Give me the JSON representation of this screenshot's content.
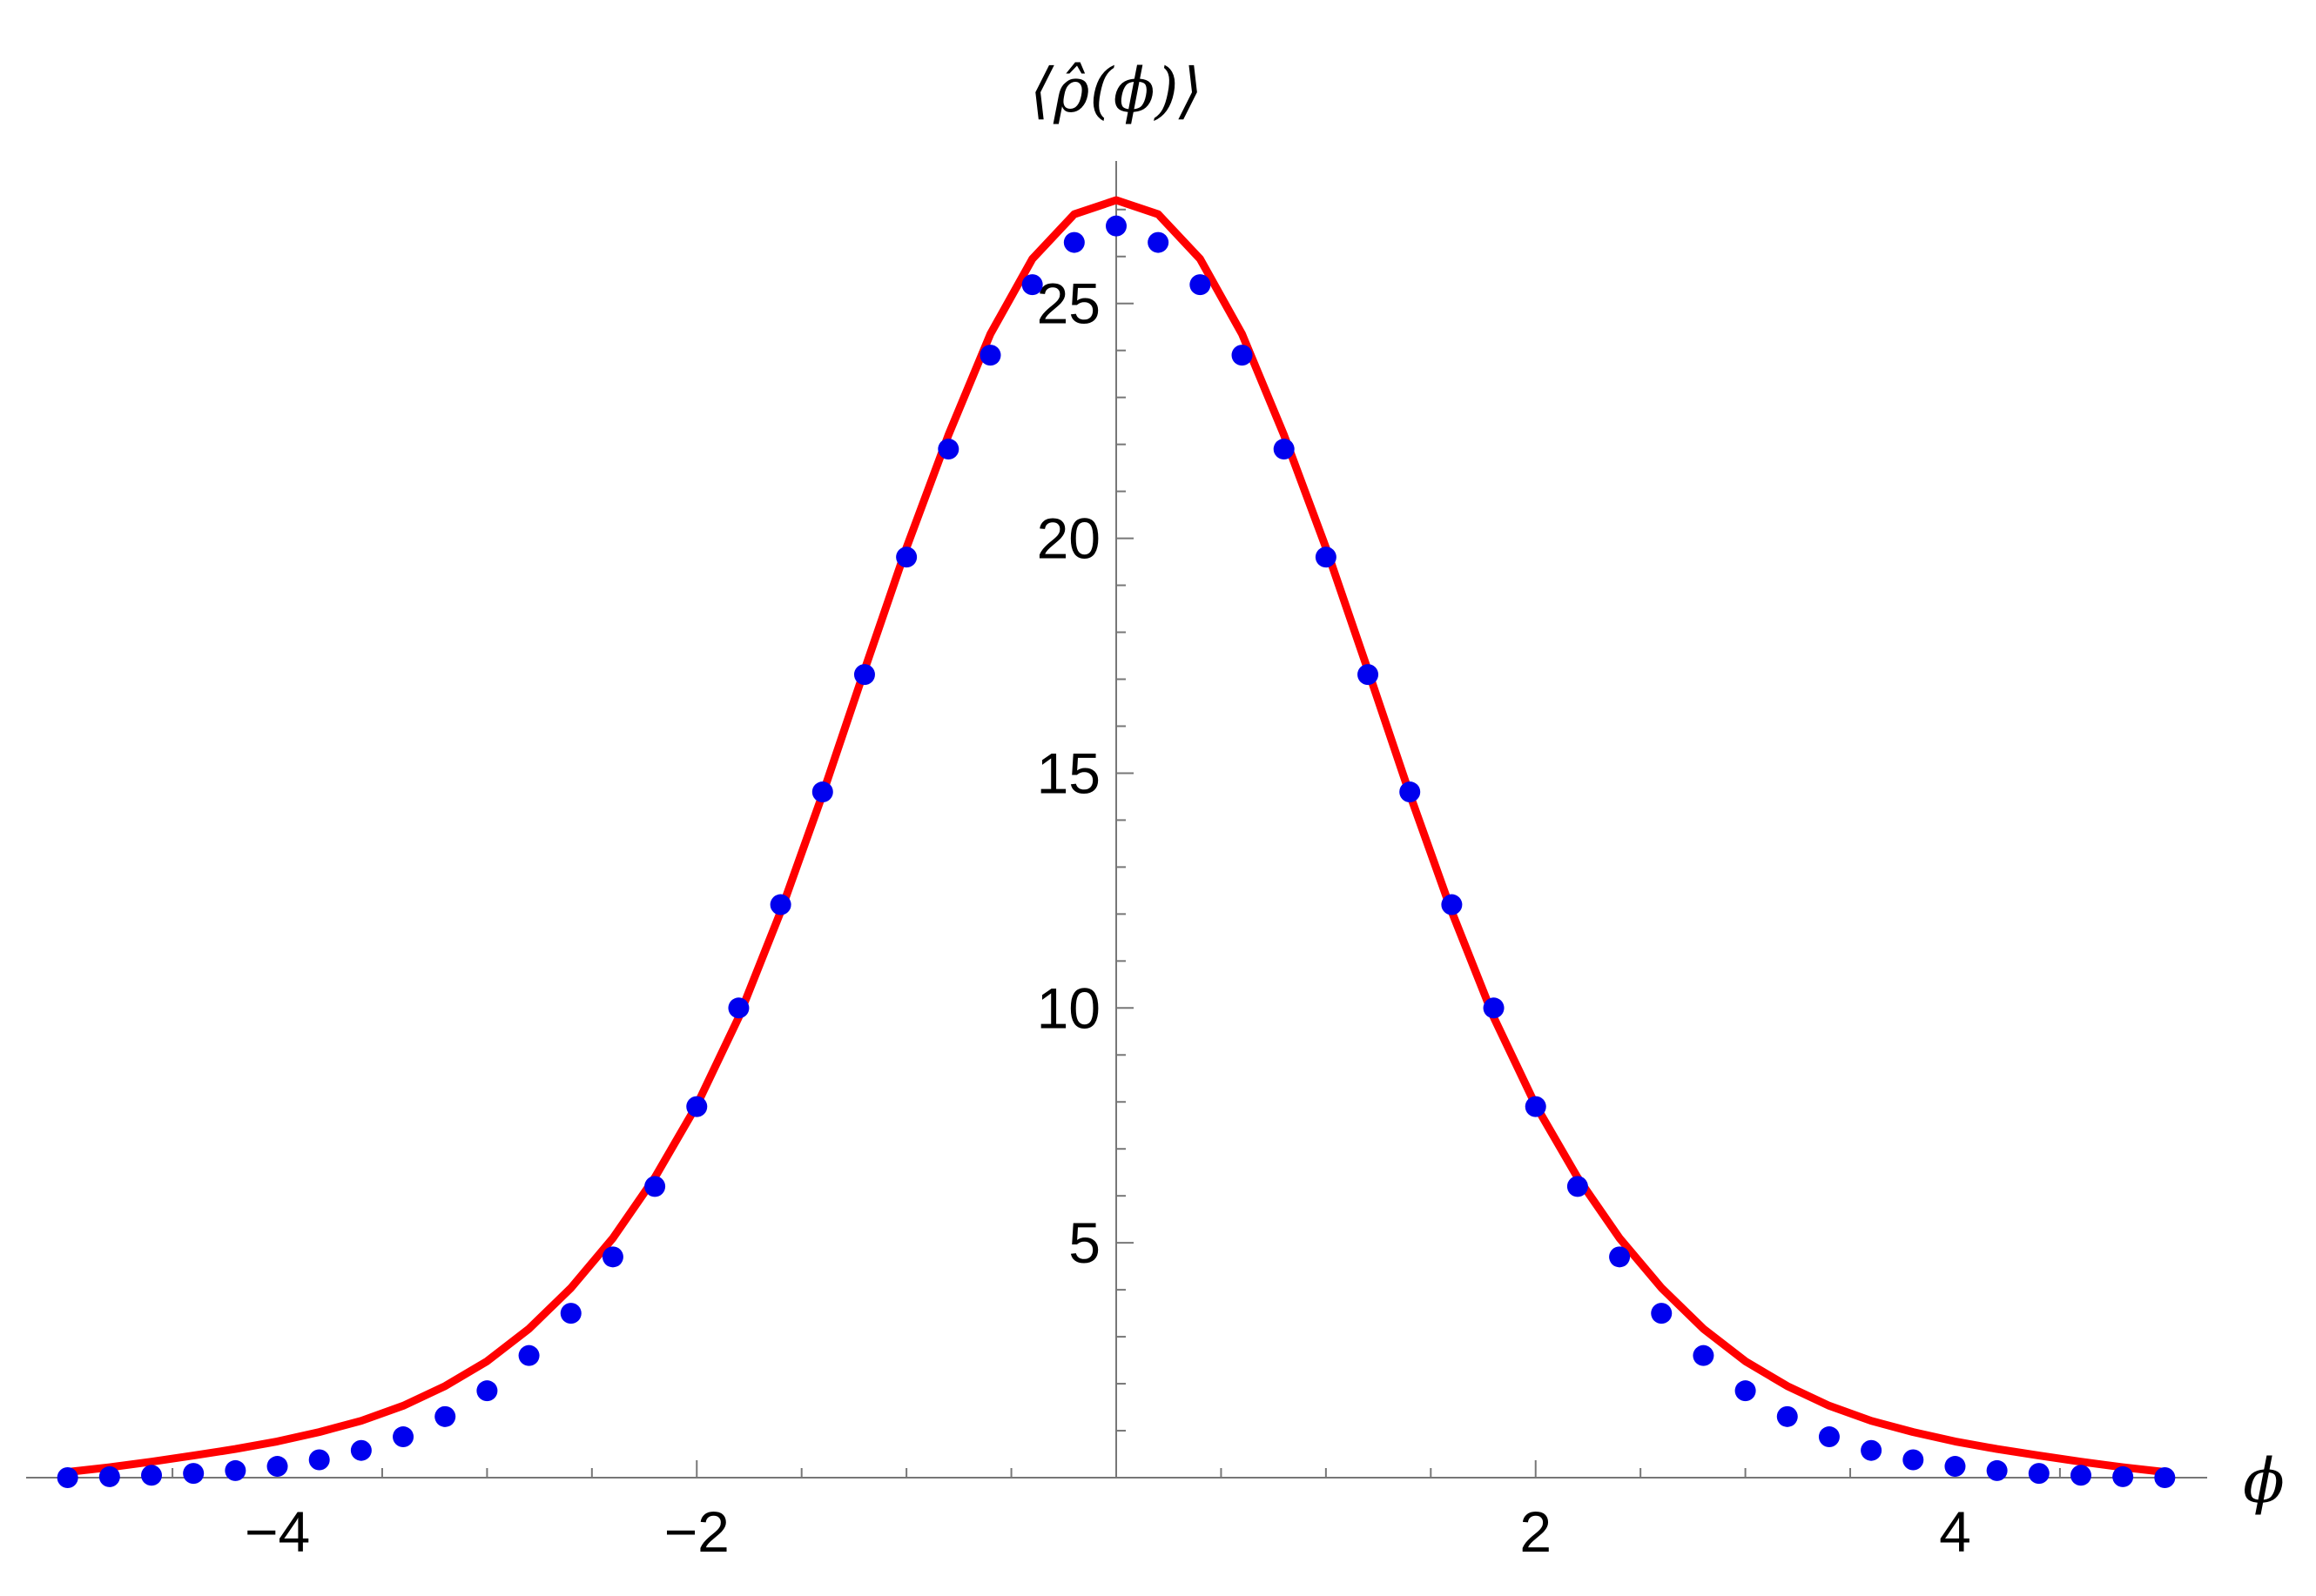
{
  "chart_data": {
    "type": "scatter",
    "title": "",
    "xlabel": "ϕ",
    "ylabel": "⟨ρ̂(ϕ)⟩",
    "xlim": [
      -5.2,
      5.2
    ],
    "ylim": [
      0,
      27.5
    ],
    "x_ticks": [
      -4,
      -2,
      2,
      4
    ],
    "x_tick_labels": [
      "−4",
      "−2",
      "2",
      "4"
    ],
    "y_ticks": [
      5,
      10,
      15,
      20,
      25
    ],
    "y_tick_labels": [
      "5",
      "10",
      "15",
      "20",
      "25"
    ],
    "grid": false,
    "legend": "none",
    "series": [
      {
        "kind": "points",
        "color": "#0000ee",
        "x": [
          -5.0,
          -4.8,
          -4.6,
          -4.4,
          -4.2,
          -4.0,
          -3.8,
          -3.6,
          -3.4,
          -3.2,
          -3.0,
          -2.8,
          -2.6,
          -2.4,
          -2.2,
          -2.0,
          -1.8,
          -1.6,
          -1.4,
          -1.2,
          -1.0,
          -0.8,
          -0.6,
          -0.4,
          -0.2,
          0.0,
          0.2,
          0.4,
          0.6,
          0.8,
          1.0,
          1.2,
          1.4,
          1.6,
          1.8,
          2.0,
          2.2,
          2.4,
          2.6,
          2.8,
          3.0,
          3.2,
          3.4,
          3.6,
          3.8,
          4.0,
          4.2,
          4.4,
          4.6,
          4.8,
          5.0
        ],
        "y": [
          0.0,
          0.02,
          0.05,
          0.09,
          0.15,
          0.24,
          0.38,
          0.58,
          0.87,
          1.3,
          1.85,
          2.6,
          3.5,
          4.7,
          6.2,
          7.9,
          10.0,
          12.2,
          14.6,
          17.1,
          19.6,
          21.9,
          23.9,
          25.4,
          26.3,
          26.65,
          26.3,
          25.4,
          23.9,
          21.9,
          19.6,
          17.1,
          14.6,
          12.2,
          10.0,
          7.9,
          6.2,
          4.7,
          3.5,
          2.6,
          1.85,
          1.3,
          0.87,
          0.58,
          0.38,
          0.24,
          0.15,
          0.09,
          0.05,
          0.02,
          0.0
        ]
      },
      {
        "kind": "line",
        "color": "#ff0000",
        "x": [
          -5.0,
          -4.8,
          -4.6,
          -4.4,
          -4.2,
          -4.0,
          -3.8,
          -3.6,
          -3.4,
          -3.2,
          -3.0,
          -2.8,
          -2.6,
          -2.4,
          -2.2,
          -2.0,
          -1.8,
          -1.6,
          -1.4,
          -1.2,
          -1.0,
          -0.8,
          -0.6,
          -0.4,
          -0.2,
          0.0,
          0.2,
          0.4,
          0.6,
          0.8,
          1.0,
          1.2,
          1.4,
          1.6,
          1.8,
          2.0,
          2.2,
          2.4,
          2.6,
          2.8,
          3.0,
          3.2,
          3.4,
          3.6,
          3.8,
          4.0,
          4.2,
          4.4,
          4.6,
          4.8,
          5.0
        ],
        "y": [
          0.12,
          0.22,
          0.34,
          0.47,
          0.61,
          0.77,
          0.97,
          1.21,
          1.53,
          1.95,
          2.48,
          3.17,
          4.04,
          5.1,
          6.39,
          7.93,
          9.8,
          12.05,
          14.55,
          17.2,
          19.8,
          22.2,
          24.35,
          25.95,
          26.9,
          27.2,
          26.9,
          25.95,
          24.35,
          22.2,
          19.8,
          17.2,
          14.55,
          12.05,
          9.8,
          7.93,
          6.39,
          5.1,
          4.04,
          3.17,
          2.48,
          1.95,
          1.53,
          1.21,
          0.97,
          0.77,
          0.61,
          0.47,
          0.34,
          0.22,
          0.12
        ]
      }
    ]
  }
}
